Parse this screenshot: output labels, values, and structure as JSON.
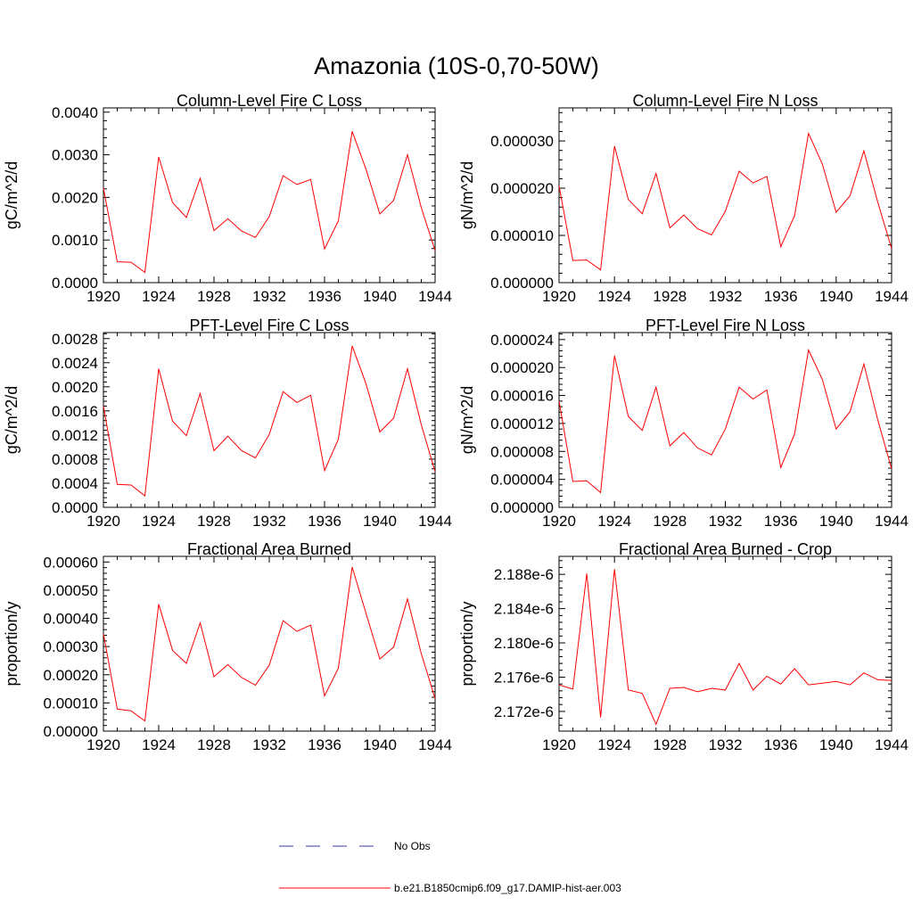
{
  "figure": {
    "title": "Amazonia (10S-0,70-50W)"
  },
  "legend": {
    "items": [
      {
        "label": "No Obs",
        "color": "#3a3aa8",
        "dash": "dashed"
      },
      {
        "label": "b.e21.B1850cmip6.f09_g17.DAMIP-hist-aer.003",
        "color": "#ff0000",
        "dash": "solid"
      }
    ]
  },
  "chart_data": [
    {
      "type": "line",
      "title": "Column-Level Fire C Loss",
      "xlabel": "",
      "ylabel": "gC/m^2/d",
      "xlim": [
        1920,
        1944
      ],
      "ylim": [
        0,
        0.0041
      ],
      "xticks": [
        1920,
        1924,
        1928,
        1932,
        1936,
        1940,
        1944
      ],
      "yticks": [
        "0.0000",
        "0.0010",
        "0.0020",
        "0.0030",
        "0.0040"
      ],
      "ytick_values": [
        0,
        0.001,
        0.002,
        0.003,
        0.004
      ],
      "color": "#ff0000",
      "x": [
        1920,
        1921,
        1922,
        1923,
        1924,
        1925,
        1926,
        1927,
        1928,
        1929,
        1930,
        1931,
        1932,
        1933,
        1934,
        1935,
        1936,
        1937,
        1938,
        1939,
        1940,
        1941,
        1942,
        1943,
        1944
      ],
      "y": [
        0.00222,
        0.00049,
        0.00048,
        0.00024,
        0.00295,
        0.00188,
        0.00153,
        0.00245,
        0.00122,
        0.0015,
        0.00121,
        0.00106,
        0.00155,
        0.00251,
        0.0023,
        0.00242,
        0.00079,
        0.00145,
        0.00355,
        0.00266,
        0.00161,
        0.00193,
        0.003,
        0.00176,
        0.00075
      ]
    },
    {
      "type": "line",
      "title": "Column-Level Fire N Loss",
      "xlabel": "",
      "ylabel": "gN/m^2/d",
      "xlim": [
        1920,
        1944
      ],
      "ylim": [
        0,
        3.7e-05
      ],
      "xticks": [
        1920,
        1924,
        1928,
        1932,
        1936,
        1940,
        1944
      ],
      "yticks": [
        "0.000000",
        "0.000010",
        "0.000020",
        "0.000030"
      ],
      "ytick_values": [
        0,
        1e-05,
        2e-05,
        3e-05
      ],
      "color": "#ff0000",
      "x": [
        1920,
        1921,
        1922,
        1923,
        1924,
        1925,
        1926,
        1927,
        1928,
        1929,
        1930,
        1931,
        1932,
        1933,
        1934,
        1935,
        1936,
        1937,
        1938,
        1939,
        1940,
        1941,
        1942,
        1943,
        1944
      ],
      "y": [
        2.05e-05,
        4.7e-06,
        4.8e-06,
        2.7e-06,
        2.89e-05,
        1.76e-05,
        1.46e-05,
        2.31e-05,
        1.16e-05,
        1.43e-05,
        1.14e-05,
        1.01e-05,
        1.51e-05,
        2.36e-05,
        2.11e-05,
        2.25e-05,
        7.6e-06,
        1.42e-05,
        3.16e-05,
        2.51e-05,
        1.49e-05,
        1.84e-05,
        2.79e-05,
        1.7e-05,
        7.2e-06
      ]
    },
    {
      "type": "line",
      "title": "PFT-Level Fire C Loss",
      "xlabel": "",
      "ylabel": "gC/m^2/d",
      "xlim": [
        1920,
        1944
      ],
      "ylim": [
        0,
        0.0029
      ],
      "xticks": [
        1920,
        1924,
        1928,
        1932,
        1936,
        1940,
        1944
      ],
      "yticks": [
        "0.0000",
        "0.0004",
        "0.0008",
        "0.0012",
        "0.0016",
        "0.0020",
        "0.0024",
        "0.0028"
      ],
      "ytick_values": [
        0,
        0.0004,
        0.0008,
        0.0012,
        0.0016,
        0.002,
        0.0024,
        0.0028
      ],
      "color": "#ff0000",
      "x": [
        1920,
        1921,
        1922,
        1923,
        1924,
        1925,
        1926,
        1927,
        1928,
        1929,
        1930,
        1931,
        1932,
        1933,
        1934,
        1935,
        1936,
        1937,
        1938,
        1939,
        1940,
        1941,
        1942,
        1943,
        1944
      ],
      "y": [
        0.00168,
        0.00038,
        0.00037,
        0.00019,
        0.0023,
        0.00143,
        0.00119,
        0.00189,
        0.00094,
        0.00118,
        0.00094,
        0.00082,
        0.00121,
        0.00192,
        0.00174,
        0.00186,
        0.00061,
        0.00113,
        0.00268,
        0.00205,
        0.00125,
        0.00148,
        0.0023,
        0.00137,
        0.00059
      ]
    },
    {
      "type": "line",
      "title": "PFT-Level Fire N Loss",
      "xlabel": "",
      "ylabel": "gN/m^2/d",
      "xlim": [
        1920,
        1944
      ],
      "ylim": [
        0,
        2.5e-05
      ],
      "xticks": [
        1920,
        1924,
        1928,
        1932,
        1936,
        1940,
        1944
      ],
      "yticks": [
        "0.000000",
        "0.000004",
        "0.000008",
        "0.000012",
        "0.000016",
        "0.000020",
        "0.000024"
      ],
      "ytick_values": [
        0,
        4e-06,
        8e-06,
        1.2e-05,
        1.6e-05,
        2e-05,
        2.4e-05
      ],
      "color": "#ff0000",
      "x": [
        1920,
        1921,
        1922,
        1923,
        1924,
        1925,
        1926,
        1927,
        1928,
        1929,
        1930,
        1931,
        1932,
        1933,
        1934,
        1935,
        1936,
        1937,
        1938,
        1939,
        1940,
        1941,
        1942,
        1943,
        1944
      ],
      "y": [
        1.52e-05,
        3.7e-06,
        3.8e-06,
        2.1e-06,
        2.17e-05,
        1.3e-05,
        1.1e-05,
        1.72e-05,
        8.8e-06,
        1.07e-05,
        8.5e-06,
        7.5e-06,
        1.12e-05,
        1.72e-05,
        1.55e-05,
        1.68e-05,
        5.7e-06,
        1.05e-05,
        2.25e-05,
        1.83e-05,
        1.12e-05,
        1.37e-05,
        2.05e-05,
        1.25e-05,
        5.5e-06
      ]
    },
    {
      "type": "line",
      "title": "Fractional Area Burned",
      "xlabel": "",
      "ylabel": "proportion/y",
      "xlim": [
        1920,
        1944
      ],
      "ylim": [
        0,
        0.00062
      ],
      "xticks": [
        1920,
        1924,
        1928,
        1932,
        1936,
        1940,
        1944
      ],
      "yticks": [
        "0.00000",
        "0.00010",
        "0.00020",
        "0.00030",
        "0.00040",
        "0.00050",
        "0.00060"
      ],
      "ytick_values": [
        0,
        0.0001,
        0.0002,
        0.0003,
        0.0004,
        0.0005,
        0.0006
      ],
      "color": "#ff0000",
      "x": [
        1920,
        1921,
        1922,
        1923,
        1924,
        1925,
        1926,
        1927,
        1928,
        1929,
        1930,
        1931,
        1932,
        1933,
        1934,
        1935,
        1936,
        1937,
        1938,
        1939,
        1940,
        1941,
        1942,
        1943,
        1944
      ],
      "y": [
        0.000345,
        7.8e-05,
        7.2e-05,
        3.6e-05,
        0.00045,
        0.000287,
        0.00024,
        0.000384,
        0.000193,
        0.000236,
        0.00019,
        0.000163,
        0.000234,
        0.000392,
        0.000354,
        0.000376,
        0.000125,
        0.000223,
        0.000582,
        0.000418,
        0.000256,
        0.000298,
        0.000469,
        0.000275,
        0.000115
      ]
    },
    {
      "type": "line",
      "title": "Fractional Area Burned - Crop",
      "xlabel": "",
      "ylabel": "proportion/y",
      "xlim": [
        1920,
        1944
      ],
      "ylim": [
        2.1697e-06,
        2.1901e-06
      ],
      "xticks": [
        1920,
        1924,
        1928,
        1932,
        1936,
        1940,
        1944
      ],
      "yticks": [
        "2.172e-6",
        "2.176e-6",
        "2.180e-6",
        "2.184e-6",
        "2.188e-6"
      ],
      "ytick_values": [
        2.172e-06,
        2.176e-06,
        2.18e-06,
        2.184e-06,
        2.188e-06
      ],
      "color": "#ff0000",
      "x": [
        1920,
        1921,
        1922,
        1923,
        1924,
        1925,
        1926,
        1927,
        1928,
        1929,
        1930,
        1931,
        1932,
        1933,
        1934,
        1935,
        1936,
        1937,
        1938,
        1939,
        1940,
        1941,
        1942,
        1943,
        1944
      ],
      "y": [
        2.1751e-06,
        2.1746e-06,
        2.1881e-06,
        2.1713e-06,
        2.1886e-06,
        2.1745e-06,
        2.1741e-06,
        2.1705e-06,
        2.1747e-06,
        2.1748e-06,
        2.1743e-06,
        2.1747e-06,
        2.1745e-06,
        2.1776e-06,
        2.1745e-06,
        2.1761e-06,
        2.1752e-06,
        2.177e-06,
        2.1751e-06,
        2.1753e-06,
        2.1755e-06,
        2.1751e-06,
        2.1765e-06,
        2.1757e-06,
        2.1756e-06
      ]
    }
  ]
}
